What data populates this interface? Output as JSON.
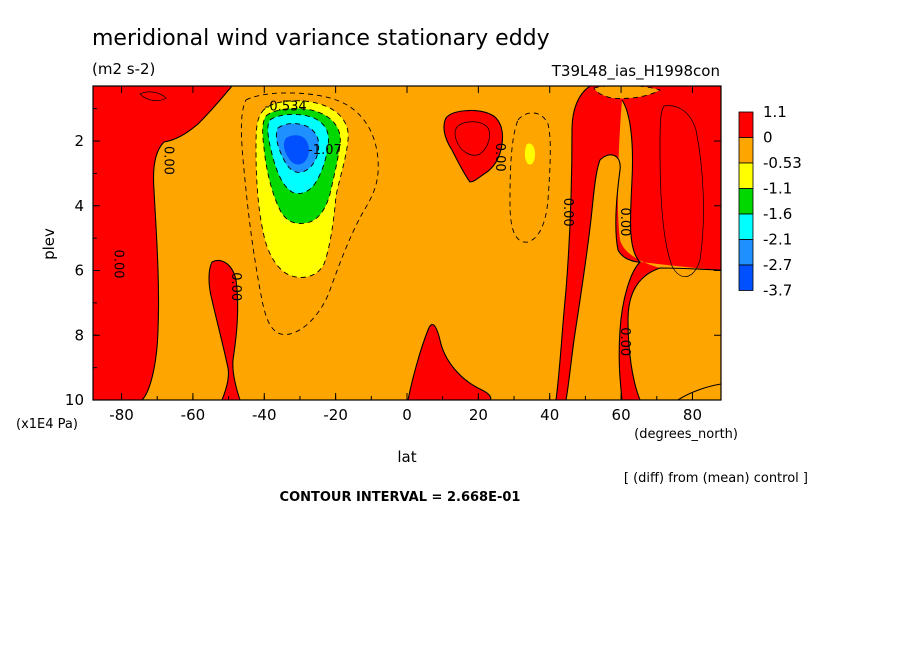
{
  "chart_data": {
    "type": "contour",
    "title": "meridional wind variance  stationary eddy",
    "units": "(m2 s-2)",
    "experiment": "T39L48_ias_H1998con",
    "xlabel": "lat",
    "xunits": "(degrees_north)",
    "ylabel": "plev",
    "yunits": "(x1E4 Pa)",
    "xlim": [
      -88,
      88
    ],
    "ylim": [
      10,
      0.3
    ],
    "x_ticks": [
      "-80",
      "-60",
      "-40",
      "-20",
      "0",
      "20",
      "40",
      "60",
      "80"
    ],
    "y_ticks": [
      "2",
      "4",
      "6",
      "8",
      "10"
    ],
    "note": "[ (diff) from (mean) control ]",
    "contour_interval": "CONTOUR INTERVAL = 2.668E-01",
    "legend_levels": [
      "1.1",
      "0",
      "-0.53",
      "-1.1",
      "-1.6",
      "-2.1",
      "-2.7",
      "-3.7"
    ],
    "legend_colors": [
      "#ff0000",
      "#ffa500",
      "#ffff00",
      "#00d800",
      "#00ffff",
      "#1e90ff",
      "#0050ff"
    ],
    "contour_labels": [
      {
        "text": "-0.534",
        "lat": -34,
        "plev": 1.05
      },
      {
        "text": "-1.07",
        "lat": -23,
        "plev": 2.4
      },
      {
        "text": "0.00",
        "lat": -68,
        "plev": 2.6
      },
      {
        "text": "0.00",
        "lat": -82,
        "plev": 5.8
      },
      {
        "text": "0.00",
        "lat": -49,
        "plev": 6.5
      },
      {
        "text": "0.00",
        "lat": 25,
        "plev": 2.5
      },
      {
        "text": "0.00",
        "lat": 44,
        "plev": 4.2
      },
      {
        "text": "0.00",
        "lat": 60,
        "plev": 4.5
      },
      {
        "text": "0.00",
        "lat": 60,
        "plev": 8.2
      }
    ]
  }
}
